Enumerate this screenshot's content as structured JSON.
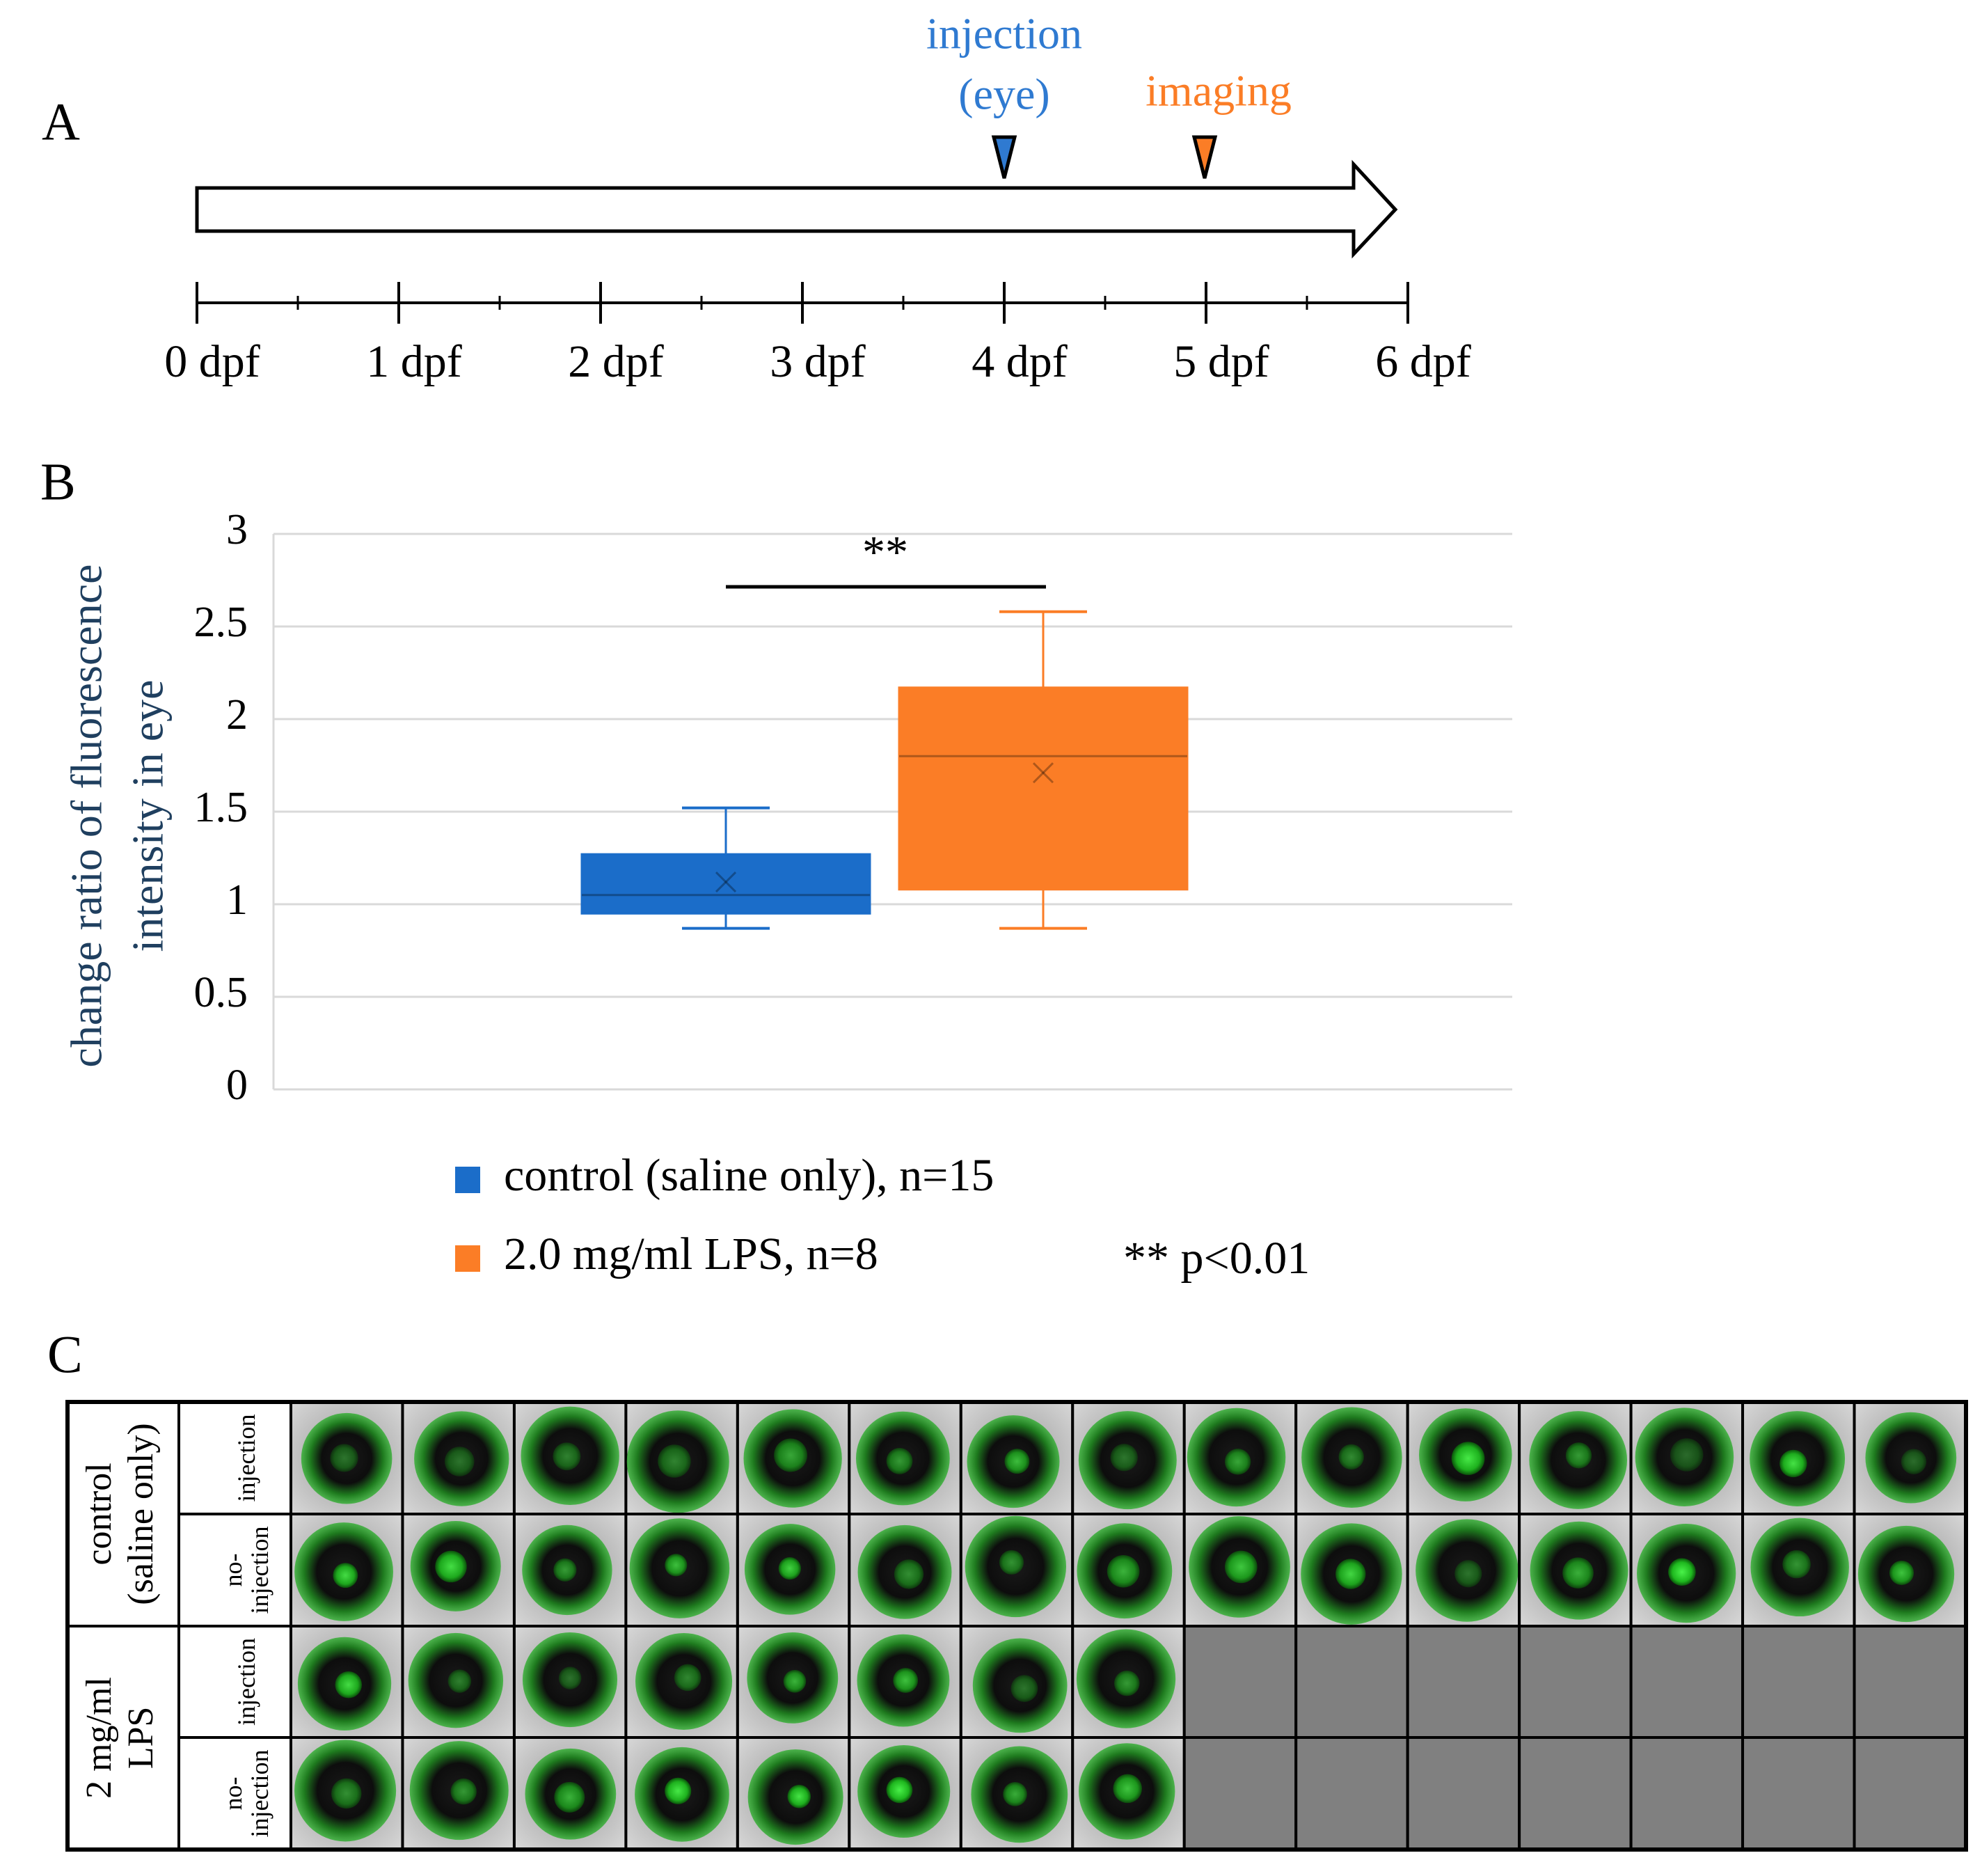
{
  "panels": {
    "a": "A",
    "b": "B",
    "c": "C"
  },
  "timeline": {
    "ticks": [
      "0 dpf",
      "1 dpf",
      "2 dpf",
      "3 dpf",
      "4 dpf",
      "5 dpf",
      "6 dpf"
    ],
    "injection": [
      "injection",
      "(eye)"
    ],
    "imaging": "imaging"
  },
  "chart_data": {
    "type": "box",
    "ylabel": [
      "change ratio of fluorescence",
      "intensity in eye"
    ],
    "ylim": [
      0,
      3
    ],
    "yticks": [
      0,
      0.5,
      1,
      1.5,
      2,
      2.5,
      3
    ],
    "grid": true,
    "series": [
      {
        "name": "control (saline only), n=15",
        "color": "#1b6dc9",
        "min": 0.87,
        "q1": 0.95,
        "median": 1.05,
        "q3": 1.27,
        "max": 1.52,
        "mean": 1.12
      },
      {
        "name": "2.0 mg/ml LPS, n=8",
        "color": "#fb7d26",
        "min": 0.87,
        "q1": 1.08,
        "median": 1.8,
        "q3": 2.17,
        "max": 2.58,
        "mean": 1.71
      }
    ],
    "significance": {
      "label": "**",
      "note": "** p<0.01"
    }
  },
  "image_grid": {
    "groups": [
      {
        "label": [
          "control",
          "(saline only)"
        ],
        "rows": [
          {
            "label": [
              "injection"
            ]
          },
          {
            "label": [
              "no-",
              "injection"
            ]
          }
        ]
      },
      {
        "label": [
          "2 mg/ml",
          "LPS"
        ],
        "rows": [
          {
            "label": [
              "injection"
            ]
          },
          {
            "label": [
              "no-",
              "injection"
            ]
          }
        ]
      }
    ]
  }
}
